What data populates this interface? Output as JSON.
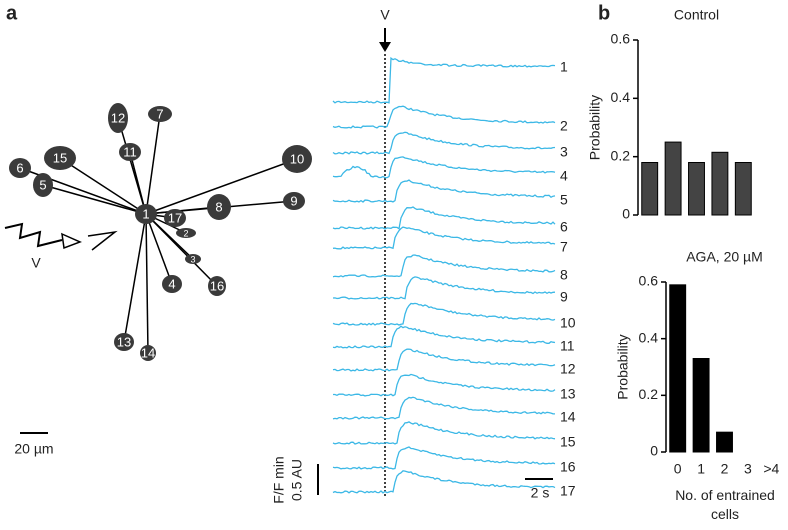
{
  "panel_labels": [
    "a",
    "b"
  ],
  "diagram": {
    "nodes": [
      "1",
      "2",
      "3",
      "4",
      "5",
      "6",
      "7",
      "8",
      "9",
      "10",
      "11",
      "12",
      "13",
      "14",
      "15",
      "16",
      "17"
    ],
    "stimulus": "V",
    "scale_bar": "20 µm"
  },
  "traces": {
    "stimulus": "V",
    "labels": [
      "1",
      "2",
      "3",
      "4",
      "5",
      "6",
      "7",
      "8",
      "9",
      "10",
      "11",
      "12",
      "13",
      "14",
      "15",
      "16",
      "17"
    ],
    "scale_y_label": "F/F min",
    "scale_y_value": "0.5 AU",
    "scale_x": "2 s"
  },
  "chart_data": [
    {
      "type": "bar",
      "title": "Control",
      "y_label": "Probability",
      "categories": [
        null,
        null,
        null,
        null,
        null
      ],
      "values": [
        0.18,
        0.25,
        0.18,
        0.215,
        0.18
      ],
      "color": "#444444",
      "ylim": [
        0,
        0.6
      ],
      "yticks": [
        0,
        0.2,
        0.4,
        0.6
      ]
    },
    {
      "type": "bar",
      "title": "AGA, 20 µM",
      "y_label": "Probability",
      "x_label": "No. of entrained cells",
      "categories": [
        "0",
        "1",
        "2",
        "3",
        ">4"
      ],
      "values": [
        0.59,
        0.33,
        0.07,
        0,
        0
      ],
      "color": "#000000",
      "ylim": [
        0,
        0.6
      ],
      "yticks": [
        0,
        0.2,
        0.4,
        0.6
      ]
    }
  ]
}
